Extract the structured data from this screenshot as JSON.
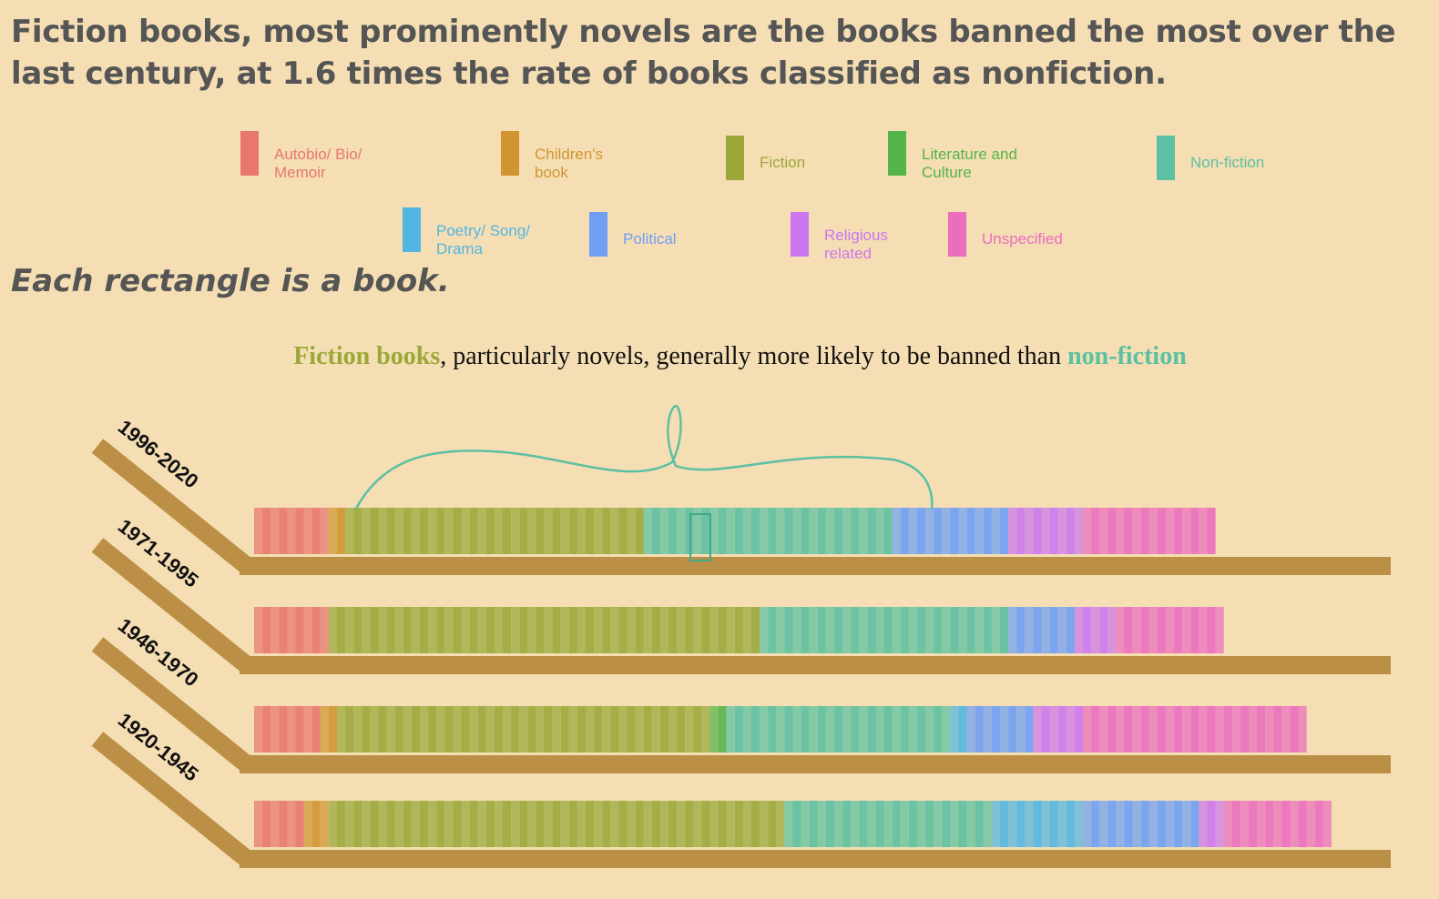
{
  "headline": "Fiction books, most prominently novels are the books banned the most over the last century, at 1.6 times the rate of books classified as nonfiction.",
  "subhead": "Each rectangle is a book.",
  "annotation": {
    "part1": "Fiction books",
    "part2": ", particularly novels, generally more likely to be banned than ",
    "part3": "non-fiction"
  },
  "legend": [
    {
      "id": "autobio",
      "label_line1": "Autobio/ Bio/",
      "label_line2": "Memoir",
      "color": "#e8776f"
    },
    {
      "id": "children",
      "label_line1": "Children's",
      "label_line2": "book",
      "color": "#d09531"
    },
    {
      "id": "fiction",
      "label_line1": "Fiction",
      "label_line2": "",
      "color": "#9aa83a"
    },
    {
      "id": "literature",
      "label_line1": "Literature and",
      "label_line2": "Culture",
      "color": "#55b44a"
    },
    {
      "id": "nonfiction",
      "label_line1": "Non-fiction",
      "label_line2": "",
      "color": "#5cc0a2"
    },
    {
      "id": "poetry",
      "label_line1": "Poetry/ Song/",
      "label_line2": "Drama",
      "color": "#52b6e2"
    },
    {
      "id": "political",
      "label_line1": "Political",
      "label_line2": "",
      "color": "#6f9ff5"
    },
    {
      "id": "religious",
      "label_line1": "Religious",
      "label_line2": "related",
      "color": "#cc77ef"
    },
    {
      "id": "unspecified",
      "label_line1": "Unspecified",
      "label_line2": "",
      "color": "#eb6dbe"
    }
  ],
  "chart_data": {
    "type": "bar",
    "encoding": "each rectangle is one banned book, grouped by category",
    "categories": [
      "Autobio/ Bio/ Memoir",
      "Children's book",
      "Fiction",
      "Literature and Culture",
      "Non-fiction",
      "Poetry/ Song/ Drama",
      "Political",
      "Religious related",
      "Unspecified"
    ],
    "periods": [
      {
        "label": "1996-2020",
        "counts": [
          9,
          2,
          36,
          0,
          30,
          0,
          14,
          9,
          16
        ]
      },
      {
        "label": "1971-1995",
        "counts": [
          9,
          0,
          52,
          0,
          30,
          0,
          8,
          5,
          13
        ]
      },
      {
        "label": "1946-1970",
        "counts": [
          8,
          2,
          45,
          2,
          27,
          2,
          8,
          6,
          27
        ]
      },
      {
        "label": "1920-1945",
        "counts": [
          6,
          3,
          55,
          0,
          25,
          11,
          14,
          3,
          13
        ]
      }
    ]
  }
}
